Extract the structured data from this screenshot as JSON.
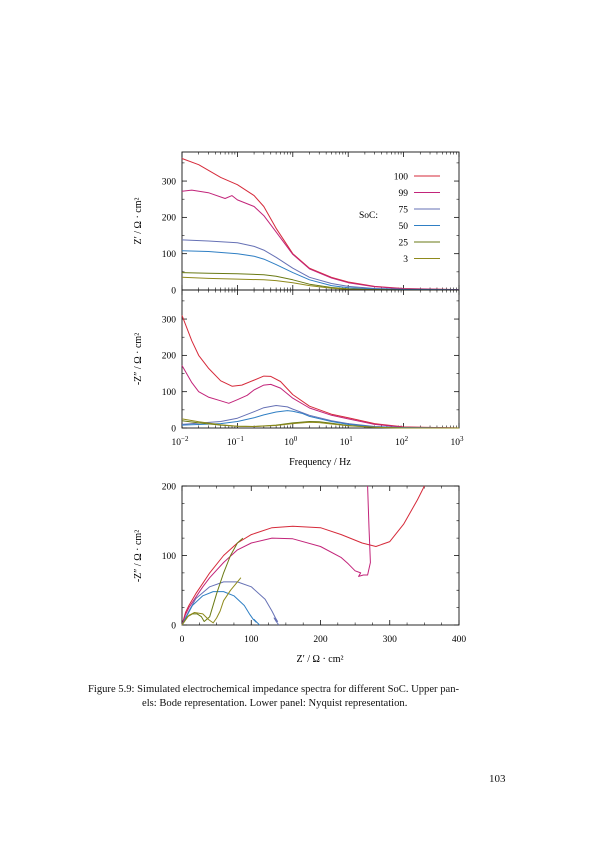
{
  "colors": {
    "soc_100": "#d62a3a",
    "soc_99": "#c2247a",
    "soc_75": "#6671b5",
    "soc_50": "#2f7fc4",
    "soc_25": "#6a7a14",
    "soc_3": "#8f8a1c"
  },
  "caption": {
    "label": "Figure 5.9:",
    "line1": "Simulated electrochemical impedance spectra for different SoC. Upper pan-",
    "line2": "els: Bode representation. Lower panel: Nyquist representation."
  },
  "page_number": "103",
  "chart_data": [
    {
      "type": "line",
      "panel": "bode-real",
      "ylabel": "Z′ / Ω · cm²",
      "x_scale": "log",
      "xlim": [
        0.01,
        1000
      ],
      "ylim": [
        0,
        380
      ],
      "yticks": [
        "0",
        "100",
        "200",
        "300"
      ],
      "legend": {
        "title": "SoC:",
        "position": "top-right",
        "labels": [
          "100",
          "99",
          "75",
          "50",
          "25",
          "3"
        ]
      },
      "series": [
        {
          "name": "100",
          "color": "#d62a3a",
          "x": [
            0.01,
            0.02,
            0.05,
            0.1,
            0.2,
            0.3,
            0.5,
            1,
            2,
            5,
            10,
            30,
            100,
            1000
          ],
          "y": [
            362,
            345,
            310,
            290,
            260,
            230,
            170,
            100,
            60,
            35,
            22,
            10,
            4,
            1
          ]
        },
        {
          "name": "99",
          "color": "#c2247a",
          "x": [
            0.01,
            0.015,
            0.03,
            0.06,
            0.08,
            0.1,
            0.2,
            0.3,
            0.5,
            1,
            2,
            5,
            10,
            30,
            100,
            1000
          ],
          "y": [
            272,
            275,
            268,
            252,
            260,
            248,
            230,
            205,
            160,
            98,
            58,
            33,
            20,
            9,
            3,
            1
          ]
        },
        {
          "name": "75",
          "color": "#6671b5",
          "x": [
            0.01,
            0.03,
            0.1,
            0.2,
            0.3,
            0.5,
            1,
            2,
            5,
            10,
            30,
            100,
            1000
          ],
          "y": [
            138,
            135,
            130,
            120,
            110,
            90,
            60,
            35,
            18,
            10,
            4,
            2,
            1
          ]
        },
        {
          "name": "50",
          "color": "#2f7fc4",
          "x": [
            0.01,
            0.03,
            0.1,
            0.2,
            0.3,
            0.5,
            1,
            2,
            5,
            10,
            30,
            100,
            1000
          ],
          "y": [
            108,
            106,
            100,
            93,
            85,
            70,
            48,
            28,
            12,
            6,
            3,
            1,
            0
          ]
        },
        {
          "name": "25",
          "color": "#6a7a14",
          "x": [
            0.01,
            0.03,
            0.1,
            0.3,
            0.5,
            1,
            2,
            5,
            10,
            30,
            100,
            1000
          ],
          "y": [
            48,
            46,
            45,
            42,
            38,
            28,
            16,
            7,
            3,
            1,
            0,
            0
          ]
        },
        {
          "name": "3",
          "color": "#8f8a1c",
          "x": [
            0.01,
            0.03,
            0.1,
            0.3,
            0.5,
            1,
            2,
            5,
            10,
            30,
            100,
            1000
          ],
          "y": [
            35,
            32,
            30,
            28,
            26,
            20,
            12,
            5,
            2,
            1,
            0,
            0
          ]
        }
      ]
    },
    {
      "type": "line",
      "panel": "bode-imag",
      "ylabel": "-Z″ / Ω · cm²",
      "xlabel": "Frequency / Hz",
      "x_scale": "log",
      "xlim": [
        0.01,
        1000
      ],
      "ylim": [
        0,
        380
      ],
      "yticks": [
        "0",
        "100",
        "200",
        "300"
      ],
      "xticks": [
        {
          "base": "10",
          "exp": "−2"
        },
        {
          "base": "10",
          "exp": "−1"
        },
        {
          "base": "10",
          "exp": "0"
        },
        {
          "base": "10",
          "exp": "1"
        },
        {
          "base": "10",
          "exp": "2"
        },
        {
          "base": "10",
          "exp": "3"
        }
      ],
      "series": [
        {
          "name": "100",
          "color": "#d62a3a",
          "x": [
            0.01,
            0.015,
            0.02,
            0.03,
            0.05,
            0.08,
            0.12,
            0.2,
            0.3,
            0.4,
            0.6,
            1,
            2,
            5,
            10,
            30,
            100,
            1000
          ],
          "y": [
            310,
            240,
            200,
            165,
            130,
            115,
            118,
            132,
            143,
            142,
            128,
            92,
            60,
            38,
            28,
            12,
            3,
            0
          ]
        },
        {
          "name": "99",
          "color": "#c2247a",
          "x": [
            0.01,
            0.015,
            0.02,
            0.03,
            0.05,
            0.07,
            0.1,
            0.15,
            0.2,
            0.3,
            0.4,
            0.6,
            1,
            2,
            5,
            10,
            30,
            100,
            1000
          ],
          "y": [
            172,
            125,
            100,
            85,
            75,
            68,
            78,
            90,
            105,
            118,
            120,
            110,
            82,
            55,
            35,
            25,
            10,
            2,
            0
          ]
        },
        {
          "name": "75",
          "color": "#6671b5",
          "x": [
            0.01,
            0.05,
            0.1,
            0.2,
            0.3,
            0.5,
            0.8,
            1,
            2,
            5,
            10,
            30,
            100,
            1000
          ],
          "y": [
            10,
            18,
            27,
            45,
            56,
            62,
            58,
            52,
            35,
            20,
            12,
            4,
            1,
            0
          ]
        },
        {
          "name": "50",
          "color": "#2f7fc4",
          "x": [
            0.01,
            0.05,
            0.1,
            0.2,
            0.3,
            0.5,
            0.8,
            1,
            1.5,
            2,
            5,
            10,
            30,
            100,
            1000
          ],
          "y": [
            8,
            12,
            18,
            28,
            36,
            44,
            48,
            46,
            40,
            32,
            18,
            10,
            3,
            1,
            0
          ]
        },
        {
          "name": "25",
          "color": "#6a7a14",
          "x": [
            0.01,
            0.02,
            0.05,
            0.1,
            0.2,
            0.5,
            1,
            2,
            3,
            5,
            10,
            30,
            100,
            1000
          ],
          "y": [
            20,
            14,
            8,
            5,
            4,
            8,
            14,
            18,
            17,
            13,
            7,
            2,
            0,
            0
          ]
        },
        {
          "name": "3",
          "color": "#8f8a1c",
          "x": [
            0.01,
            0.02,
            0.05,
            0.1,
            0.2,
            0.5,
            1,
            2,
            3,
            5,
            10,
            30,
            100,
            1000
          ],
          "y": [
            25,
            17,
            9,
            5,
            4,
            7,
            12,
            16,
            15,
            11,
            6,
            2,
            0,
            0
          ]
        }
      ]
    },
    {
      "type": "line",
      "panel": "nyquist",
      "xlabel": "Z′ / Ω · cm²",
      "ylabel": "-Z″ / Ω · cm²",
      "xlim": [
        0,
        400
      ],
      "ylim": [
        0,
        200
      ],
      "xticks": [
        "0",
        "100",
        "200",
        "300",
        "400"
      ],
      "yticks": [
        "0",
        "100",
        "200"
      ],
      "series": [
        {
          "name": "100",
          "color": "#d62a3a",
          "x": [
            0,
            5,
            10,
            20,
            30,
            40,
            60,
            80,
            100,
            130,
            160,
            200,
            230,
            260,
            280,
            300,
            320,
            340,
            350
          ],
          "y": [
            0,
            18,
            28,
            45,
            60,
            75,
            100,
            118,
            130,
            140,
            142,
            140,
            130,
            118,
            113,
            120,
            145,
            180,
            200
          ]
        },
        {
          "name": "99",
          "color": "#c2247a",
          "x": [
            0,
            5,
            10,
            20,
            30,
            40,
            60,
            80,
            100,
            130,
            160,
            200,
            230,
            240,
            250,
            258,
            255,
            262,
            268,
            272,
            270,
            268
          ],
          "y": [
            0,
            15,
            25,
            40,
            55,
            68,
            90,
            108,
            118,
            125,
            124,
            113,
            97,
            88,
            78,
            75,
            70,
            72,
            72,
            90,
            140,
            200
          ]
        },
        {
          "name": "75",
          "color": "#6671b5",
          "x": [
            0,
            10,
            20,
            40,
            60,
            80,
            100,
            120,
            130,
            135,
            138,
            133,
            136,
            140
          ],
          "y": [
            0,
            20,
            38,
            55,
            62,
            62,
            55,
            37,
            20,
            10,
            5,
            10,
            5,
            0
          ]
        },
        {
          "name": "50",
          "color": "#2f7fc4",
          "x": [
            0,
            8,
            15,
            30,
            45,
            60,
            75,
            90,
            98,
            103,
            107,
            104,
            108,
            112
          ],
          "y": [
            0,
            15,
            28,
            42,
            48,
            48,
            42,
            28,
            15,
            8,
            4,
            8,
            4,
            0
          ]
        },
        {
          "name": "25",
          "color": "#6a7a14",
          "x": [
            0,
            8,
            15,
            22,
            28,
            32,
            40,
            50,
            60,
            70,
            80,
            88
          ],
          "y": [
            0,
            12,
            16,
            16,
            12,
            5,
            12,
            45,
            75,
            100,
            118,
            125
          ]
        },
        {
          "name": "3",
          "color": "#8f8a1c",
          "x": [
            0,
            10,
            18,
            30,
            38,
            45,
            50,
            55,
            60,
            70,
            80,
            85
          ],
          "y": [
            0,
            14,
            18,
            16,
            8,
            3,
            10,
            20,
            35,
            50,
            62,
            68
          ]
        }
      ]
    }
  ]
}
